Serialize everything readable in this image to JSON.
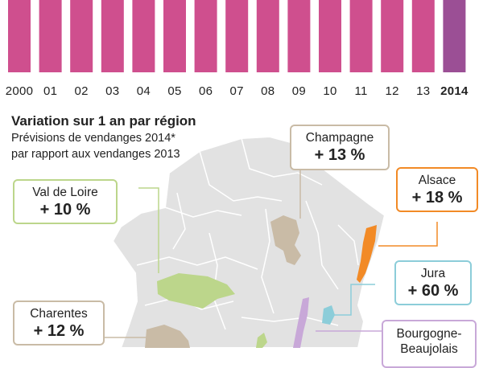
{
  "chart_data": {
    "type": "bar",
    "categories": [
      "2000",
      "01",
      "02",
      "03",
      "04",
      "05",
      "06",
      "07",
      "08",
      "09",
      "10",
      "11",
      "12",
      "13",
      "2014"
    ],
    "highlight": "2014",
    "colors": {
      "bar": "#cf4f8e",
      "highlight": "#9b4f95"
    }
  },
  "title": "Variation sur 1 an par région",
  "subtitle_line1": "Prévisions de vendanges 2014*",
  "subtitle_line2": "par rapport aux vendanges 2013",
  "regions": [
    {
      "name": "Champagne",
      "value": "+ 13 %",
      "color": "#c9bba6"
    },
    {
      "name": "Alsace",
      "value": "+ 18 %",
      "color": "#f28a26"
    },
    {
      "name": "Val de Loire",
      "value": "+ 10 %",
      "color": "#bcd68b"
    },
    {
      "name": "Jura",
      "value": "+ 60 %",
      "color": "#8ccdd9"
    },
    {
      "name": "Charentes",
      "value": "+ 12 %",
      "color": "#c9bba6"
    },
    {
      "name": "Bourgogne-",
      "value": "Beaujolais",
      "color": "#c8a8d8"
    }
  ],
  "map_colors": {
    "france": "#e2e2e2",
    "borders": "#ffffff"
  }
}
